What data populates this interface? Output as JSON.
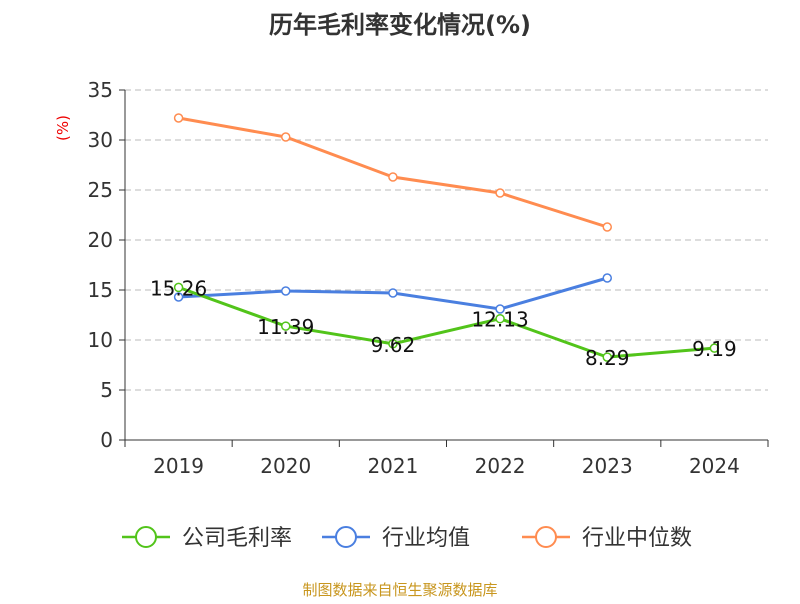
{
  "chart_data": {
    "type": "line",
    "title": "历年毛利率变化情况(%)",
    "ylabel": "(%)",
    "categories": [
      "2019",
      "2020",
      "2021",
      "2022",
      "2023",
      "2024"
    ],
    "ylim": [
      0,
      35
    ],
    "yticks": [
      0,
      5,
      10,
      15,
      20,
      25,
      30,
      35
    ],
    "grid": true,
    "legend": "bottom",
    "series": [
      {
        "name": "公司毛利率",
        "color": "#52c41a",
        "values": [
          15.26,
          11.39,
          9.62,
          12.13,
          8.29,
          9.19
        ],
        "labels": true
      },
      {
        "name": "行业均值",
        "color": "#4a7fe0",
        "values": [
          14.3,
          14.9,
          14.7,
          13.1,
          16.2,
          null
        ]
      },
      {
        "name": "行业中位数",
        "color": "#ff8c50",
        "values": [
          32.2,
          30.3,
          26.3,
          24.7,
          21.3,
          null
        ]
      }
    ]
  },
  "footer": "制图数据来自恒生聚源数据库"
}
